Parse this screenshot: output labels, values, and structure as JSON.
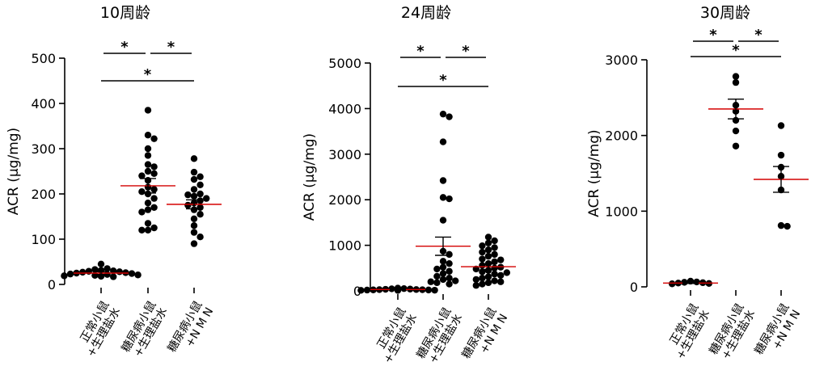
{
  "chart_data": [
    {
      "type": "scatter",
      "title": "10周龄",
      "ylabel": "ACR (μg/mg)",
      "ylim": [
        0,
        500
      ],
      "yticks": [
        0,
        100,
        200,
        300,
        400,
        500
      ],
      "categories": [
        [
          "正常小鼠",
          "+生理盐水"
        ],
        [
          "糖尿病小鼠",
          "+生理盐水"
        ],
        [
          "糖尿病小鼠",
          "+N M N"
        ]
      ],
      "groups": [
        {
          "mean": 25,
          "sem": 3,
          "points": [
            45,
            35,
            33,
            31,
            30,
            29,
            28,
            27,
            26,
            25,
            24,
            23,
            22,
            21,
            20,
            19,
            18,
            17
          ]
        },
        {
          "mean": 218,
          "sem": 16,
          "points": [
            385,
            330,
            322,
            300,
            285,
            265,
            260,
            250,
            245,
            240,
            230,
            215,
            210,
            205,
            200,
            190,
            180,
            170,
            165,
            160,
            135,
            125,
            120,
            120
          ]
        },
        {
          "mean": 177,
          "sem": 10,
          "points": [
            278,
            248,
            238,
            232,
            220,
            210,
            200,
            198,
            195,
            190,
            185,
            180,
            175,
            170,
            165,
            155,
            145,
            130,
            115,
            105,
            90
          ]
        }
      ],
      "significance": [
        {
          "from": 0,
          "to": 1,
          "label": "*"
        },
        {
          "from": 1,
          "to": 2,
          "label": "*"
        },
        {
          "from": 0,
          "to": 2,
          "label": "*"
        }
      ]
    },
    {
      "type": "scatter",
      "title": "24周龄",
      "ylabel": "ACR (μg/mg)",
      "ylim": [
        0,
        5000
      ],
      "yticks": [
        0,
        1000,
        2000,
        3000,
        4000,
        5000
      ],
      "categories": [
        [
          "正常小鼠",
          "+生理盐水"
        ],
        [
          "糖尿病小鼠",
          "+生理盐水"
        ],
        [
          "糖尿病小鼠",
          "+N M N"
        ]
      ],
      "groups": [
        {
          "mean": 30,
          "sem": 5,
          "points": [
            60,
            50,
            45,
            40,
            35,
            30,
            28,
            25,
            22,
            20,
            18,
            15,
            12,
            10
          ]
        },
        {
          "mean": 980,
          "sem": 200,
          "points": [
            3880,
            3820,
            3270,
            2420,
            2050,
            2020,
            1550,
            870,
            800,
            650,
            600,
            520,
            480,
            430,
            380,
            320,
            280,
            250,
            220,
            200,
            180,
            150
          ]
        },
        {
          "mean": 530,
          "sem": 60,
          "points": [
            1180,
            1100,
            1050,
            990,
            950,
            900,
            850,
            800,
            760,
            700,
            680,
            640,
            600,
            560,
            520,
            500,
            480,
            450,
            420,
            400,
            370,
            340,
            310,
            280,
            250,
            220,
            200,
            180,
            150,
            120
          ]
        }
      ],
      "significance": [
        {
          "from": 0,
          "to": 1,
          "label": "*"
        },
        {
          "from": 1,
          "to": 2,
          "label": "*"
        },
        {
          "from": 0,
          "to": 2,
          "label": "*"
        }
      ]
    },
    {
      "type": "scatter",
      "title": "30周龄",
      "ylabel": "ACR (μg/mg)",
      "ylim": [
        0,
        3000
      ],
      "yticks": [
        0,
        1000,
        2000,
        3000
      ],
      "categories": [
        [
          "正常小鼠",
          "+生理盐水"
        ],
        [
          "糖尿病小鼠",
          "+生理盐水"
        ],
        [
          "糖尿病小鼠",
          "+N M N"
        ]
      ],
      "groups": [
        {
          "mean": 50,
          "sem": 5,
          "points": [
            75,
            65,
            60,
            55,
            50,
            45,
            40
          ]
        },
        {
          "mean": 2350,
          "sem": 130,
          "points": [
            2780,
            2700,
            2400,
            2320,
            2200,
            2060,
            1860
          ]
        },
        {
          "mean": 1420,
          "sem": 170,
          "points": [
            2130,
            1740,
            1580,
            1460,
            1280,
            810,
            800
          ]
        }
      ],
      "significance": [
        {
          "from": 0,
          "to": 1,
          "label": "*"
        },
        {
          "from": 1,
          "to": 2,
          "label": "*"
        },
        {
          "from": 0,
          "to": 2,
          "label": "*"
        }
      ]
    }
  ],
  "colors": {
    "points": "#000000",
    "mean_line": "#d40000",
    "axis": "#000000"
  }
}
